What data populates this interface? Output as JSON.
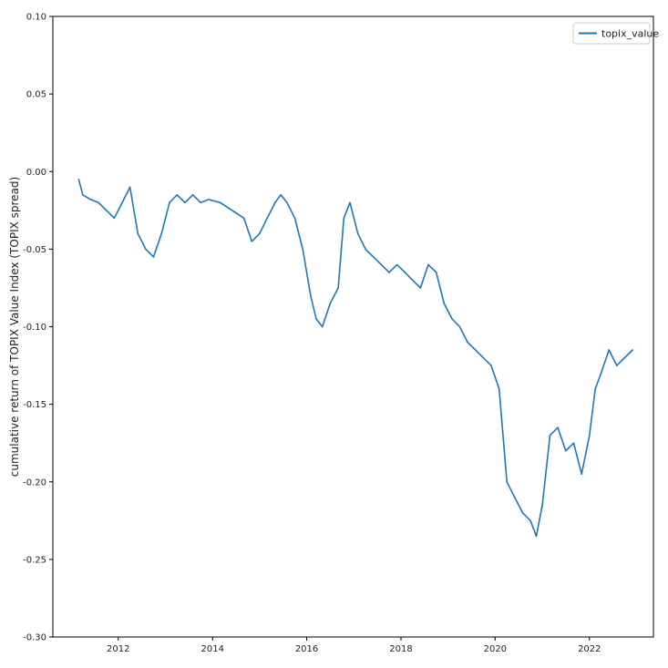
{
  "chart_data": {
    "type": "line",
    "title": "",
    "xlabel": "",
    "ylabel": "cumulative return of TOPIX Value Index (TOPIX spread)",
    "x_ticks": [
      "2012",
      "2014",
      "2016",
      "2018",
      "2020",
      "2022"
    ],
    "y_ticks": [
      "0.10",
      "0.05",
      "0.00",
      "-0.05",
      "-0.10",
      "-0.15",
      "-0.20",
      "-0.25",
      "-0.30"
    ],
    "xlim": [
      "2010-08-12",
      "2023-05-12"
    ],
    "ylim": [
      -0.3,
      0.1
    ],
    "grid": false,
    "legend": {
      "position": "top-right",
      "entries": [
        "topix_value"
      ]
    },
    "series": [
      {
        "name": "topix_value",
        "color": "#1f77b4",
        "x": [
          "2011-03-01",
          "2011-04-01",
          "2011-06-01",
          "2011-08-01",
          "2011-10-01",
          "2011-12-01",
          "2012-02-01",
          "2012-04-01",
          "2012-06-01",
          "2012-08-01",
          "2012-10-01",
          "2012-12-01",
          "2013-02-01",
          "2013-04-01",
          "2013-06-01",
          "2013-08-01",
          "2013-10-01",
          "2013-12-01",
          "2014-03-01",
          "2014-06-01",
          "2014-09-01",
          "2014-11-01",
          "2015-01-01",
          "2015-03-01",
          "2015-05-01",
          "2015-06-15",
          "2015-08-01",
          "2015-10-01",
          "2015-12-01",
          "2016-02-01",
          "2016-03-15",
          "2016-05-01",
          "2016-07-01",
          "2016-09-01",
          "2016-10-15",
          "2016-12-01",
          "2017-02-01",
          "2017-04-01",
          "2017-06-01",
          "2017-08-01",
          "2017-10-01",
          "2017-12-01",
          "2018-02-01",
          "2018-04-01",
          "2018-06-01",
          "2018-08-01",
          "2018-10-01",
          "2018-12-01",
          "2019-02-01",
          "2019-04-01",
          "2019-06-01",
          "2019-08-01",
          "2019-10-01",
          "2019-12-01",
          "2020-02-01",
          "2020-04-01",
          "2020-06-01",
          "2020-08-01",
          "2020-10-01",
          "2020-11-15",
          "2021-01-01",
          "2021-03-01",
          "2021-05-01",
          "2021-07-01",
          "2021-09-01",
          "2021-11-01",
          "2022-01-01",
          "2022-02-15",
          "2022-04-01",
          "2022-06-01",
          "2022-08-01",
          "2022-10-01",
          "2022-12-01"
        ],
        "values": [
          -0.005,
          -0.015,
          -0.018,
          -0.02,
          -0.025,
          -0.03,
          -0.02,
          -0.01,
          -0.04,
          -0.05,
          -0.055,
          -0.04,
          -0.02,
          -0.015,
          -0.02,
          -0.015,
          -0.02,
          -0.018,
          -0.02,
          -0.025,
          -0.03,
          -0.045,
          -0.04,
          -0.03,
          -0.02,
          -0.015,
          -0.02,
          -0.03,
          -0.05,
          -0.08,
          -0.095,
          -0.1,
          -0.085,
          -0.075,
          -0.03,
          -0.02,
          -0.04,
          -0.05,
          -0.055,
          -0.06,
          -0.065,
          -0.06,
          -0.065,
          -0.07,
          -0.075,
          -0.06,
          -0.065,
          -0.085,
          -0.095,
          -0.1,
          -0.11,
          -0.115,
          -0.12,
          -0.125,
          -0.14,
          -0.2,
          -0.21,
          -0.22,
          -0.225,
          -0.235,
          -0.215,
          -0.17,
          -0.165,
          -0.18,
          -0.175,
          -0.195,
          -0.17,
          -0.14,
          -0.13,
          -0.115,
          -0.125,
          -0.12,
          -0.115
        ]
      }
    ]
  }
}
